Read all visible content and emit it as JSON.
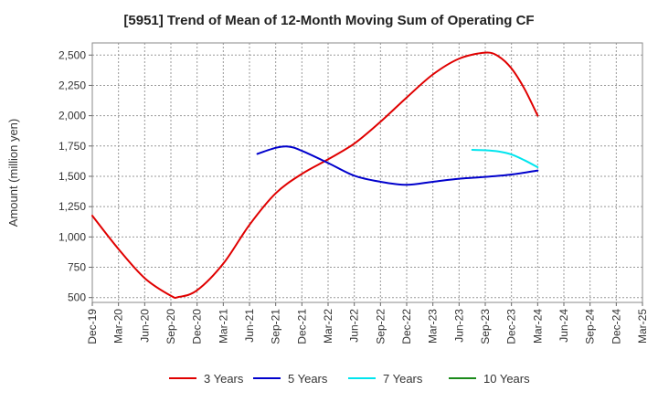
{
  "chart_data": {
    "type": "line",
    "title": "[5951]  Trend of Mean of 12-Month Moving Sum of Operating CF",
    "xlabel": "",
    "ylabel": "Amount (million yen)",
    "ylim": [
      460,
      2600
    ],
    "yticks": [
      500,
      750,
      1000,
      1250,
      1500,
      1750,
      2000,
      2250,
      2500
    ],
    "ytick_labels": [
      "500",
      "750",
      "1,000",
      "1,250",
      "1,500",
      "1,750",
      "2,000",
      "2,250",
      "2,500"
    ],
    "x_tick_labels": [
      "Dec-19",
      "Mar-20",
      "Jun-20",
      "Sep-20",
      "Dec-20",
      "Mar-21",
      "Jun-21",
      "Sep-21",
      "Dec-21",
      "Mar-22",
      "Jun-22",
      "Sep-22",
      "Dec-22",
      "Mar-23",
      "Jun-23",
      "Sep-23",
      "Dec-23",
      "Mar-24",
      "Jun-24",
      "Sep-24",
      "Dec-24",
      "Mar-25"
    ],
    "grid": true,
    "legend_position": "bottom",
    "series": [
      {
        "name": "3 Years",
        "color": "#e00000",
        "points": [
          [
            0,
            1175
          ],
          [
            1,
            900
          ],
          [
            2,
            660
          ],
          [
            3,
            515
          ],
          [
            3.3,
            505
          ],
          [
            4,
            560
          ],
          [
            5,
            780
          ],
          [
            6,
            1100
          ],
          [
            7,
            1360
          ],
          [
            8,
            1520
          ],
          [
            9,
            1640
          ],
          [
            10,
            1770
          ],
          [
            11,
            1950
          ],
          [
            12,
            2150
          ],
          [
            13,
            2340
          ],
          [
            14,
            2470
          ],
          [
            15,
            2520
          ],
          [
            15.5,
            2490
          ],
          [
            16,
            2390
          ],
          [
            16.5,
            2220
          ],
          [
            17,
            2000
          ]
        ]
      },
      {
        "name": "5 Years",
        "color": "#0000cc",
        "points": [
          [
            6.3,
            1685
          ],
          [
            7,
            1735
          ],
          [
            7.5,
            1745
          ],
          [
            8,
            1710
          ],
          [
            9,
            1610
          ],
          [
            10,
            1505
          ],
          [
            11,
            1455
          ],
          [
            12,
            1430
          ],
          [
            13,
            1455
          ],
          [
            14,
            1480
          ],
          [
            15,
            1495
          ],
          [
            16,
            1515
          ],
          [
            17,
            1548
          ]
        ]
      },
      {
        "name": "7 Years",
        "color": "#00e5ee",
        "points": [
          [
            14.5,
            1718
          ],
          [
            15,
            1715
          ],
          [
            15.5,
            1705
          ],
          [
            16,
            1680
          ],
          [
            16.5,
            1632
          ],
          [
            17,
            1575
          ]
        ]
      },
      {
        "name": "10 Years",
        "color": "#1a8a1a",
        "points": []
      }
    ]
  }
}
